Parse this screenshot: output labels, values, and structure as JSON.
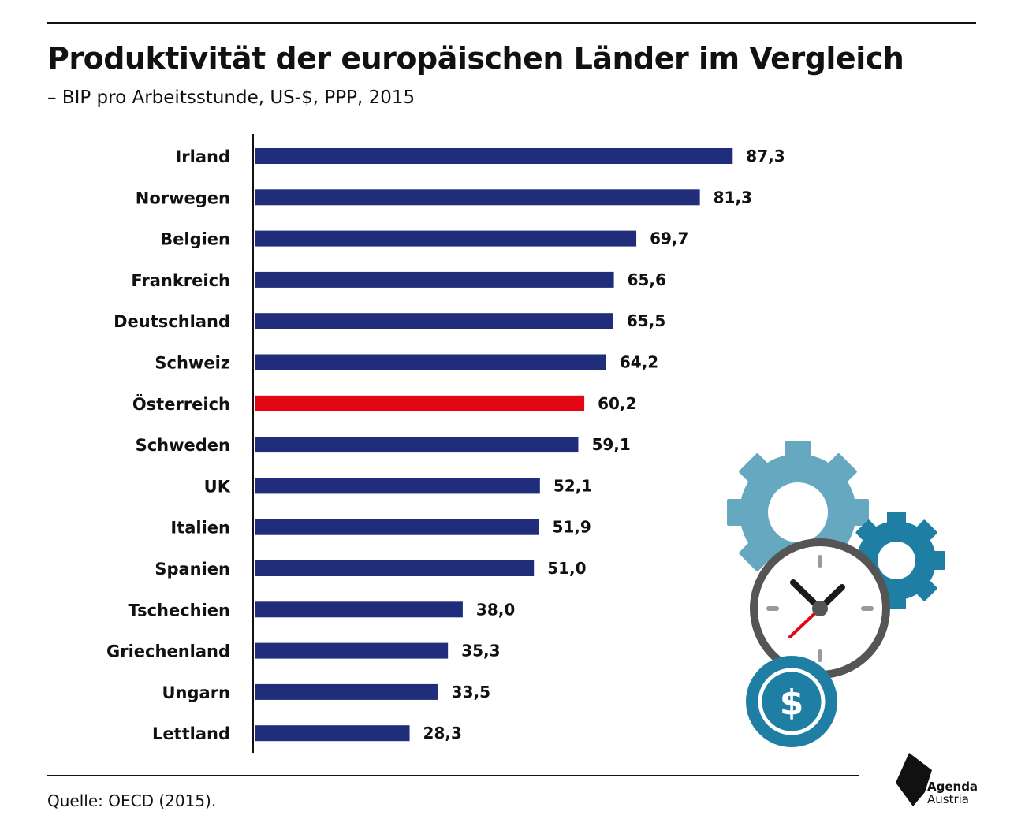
{
  "title": "Produktivität der europäischen Länder im Vergleich",
  "subtitle": "– BIP pro Arbeitsstunde, US-$, PPP, 2015",
  "source": "Quelle: OECD (2015).",
  "logo": {
    "line1": "Agenda",
    "line2": "Austria"
  },
  "colors": {
    "bar": "#1f2d7a",
    "highlight": "#e30613",
    "text": "#111111"
  },
  "illustration": {
    "icons": [
      "gear-large-icon",
      "gear-small-icon",
      "clock-icon",
      "dollar-coin-icon"
    ],
    "dollar_symbol": "$"
  },
  "chart_data": {
    "type": "bar",
    "orientation": "horizontal",
    "title": "Produktivität der europäischen Länder im Vergleich",
    "subtitle": "– BIP pro Arbeitsstunde, US-$, PPP, 2015",
    "categories": [
      "Irland",
      "Norwegen",
      "Belgien",
      "Frankreich",
      "Deutschland",
      "Schweiz",
      "Österreich",
      "Schweden",
      "UK",
      "Italien",
      "Spanien",
      "Tschechien",
      "Griechenland",
      "Ungarn",
      "Lettland"
    ],
    "values": [
      87.3,
      81.3,
      69.7,
      65.6,
      65.5,
      64.2,
      60.2,
      59.1,
      52.1,
      51.9,
      51.0,
      38.0,
      35.3,
      33.5,
      28.3
    ],
    "value_labels": [
      "87,3",
      "81,3",
      "69,7",
      "65,6",
      "65,5",
      "64,2",
      "60,2",
      "59,1",
      "52,1",
      "51,9",
      "51,0",
      "38,0",
      "35,3",
      "33,5",
      "28,3"
    ],
    "highlight": "Österreich",
    "xlim": [
      0,
      90
    ],
    "grid": false,
    "legend": "none"
  }
}
